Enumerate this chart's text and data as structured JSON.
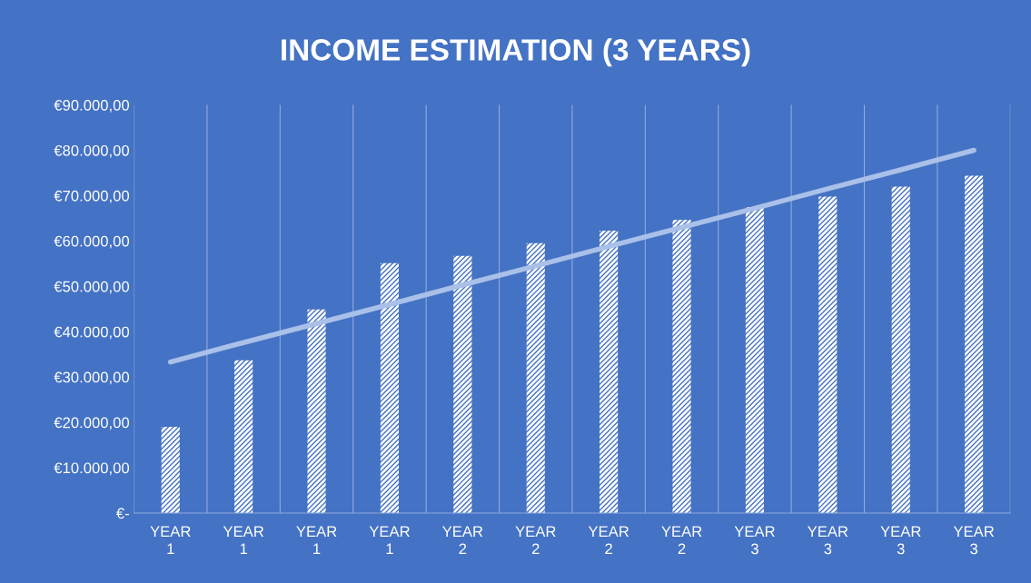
{
  "chart_data": {
    "type": "bar",
    "title": "INCOME ESTIMATION (3 YEARS)",
    "categories": [
      "YEAR\n1",
      "YEAR\n1",
      "YEAR\n1",
      "YEAR\n1",
      "YEAR\n2",
      "YEAR\n2",
      "YEAR\n2",
      "YEAR\n2",
      "YEAR\n3",
      "YEAR\n3",
      "YEAR\n3",
      "YEAR\n3"
    ],
    "series": [
      {
        "color": "#ffffff",
        "values": [
          19000,
          33700,
          44900,
          55100,
          56700,
          59500,
          62300,
          64700,
          67500,
          69800,
          72000,
          74400
        ]
      },
      {
        "type": "line",
        "color": "#a9c0e8",
        "values": [
          33300,
          37600,
          41800,
          46000,
          50300,
          54500,
          58800,
          63000,
          67200,
          71500,
          75700,
          80000
        ]
      }
    ],
    "ylim": [
      0,
      90000
    ],
    "yticks": [
      {
        "value": 0,
        "label": "€-"
      },
      {
        "value": 10000,
        "label": "€10.000,00"
      },
      {
        "value": 20000,
        "label": "€20.000,00"
      },
      {
        "value": 30000,
        "label": "€30.000,00"
      },
      {
        "value": 40000,
        "label": "€40.000,00"
      },
      {
        "value": 50000,
        "label": "€50.000,00"
      },
      {
        "value": 60000,
        "label": "€60.000,00"
      },
      {
        "value": 70000,
        "label": "€70.000,00"
      },
      {
        "value": 80000,
        "label": "€80.000,00"
      },
      {
        "value": 90000,
        "label": "€90.000,00"
      }
    ],
    "grid": "x",
    "legend": false
  }
}
